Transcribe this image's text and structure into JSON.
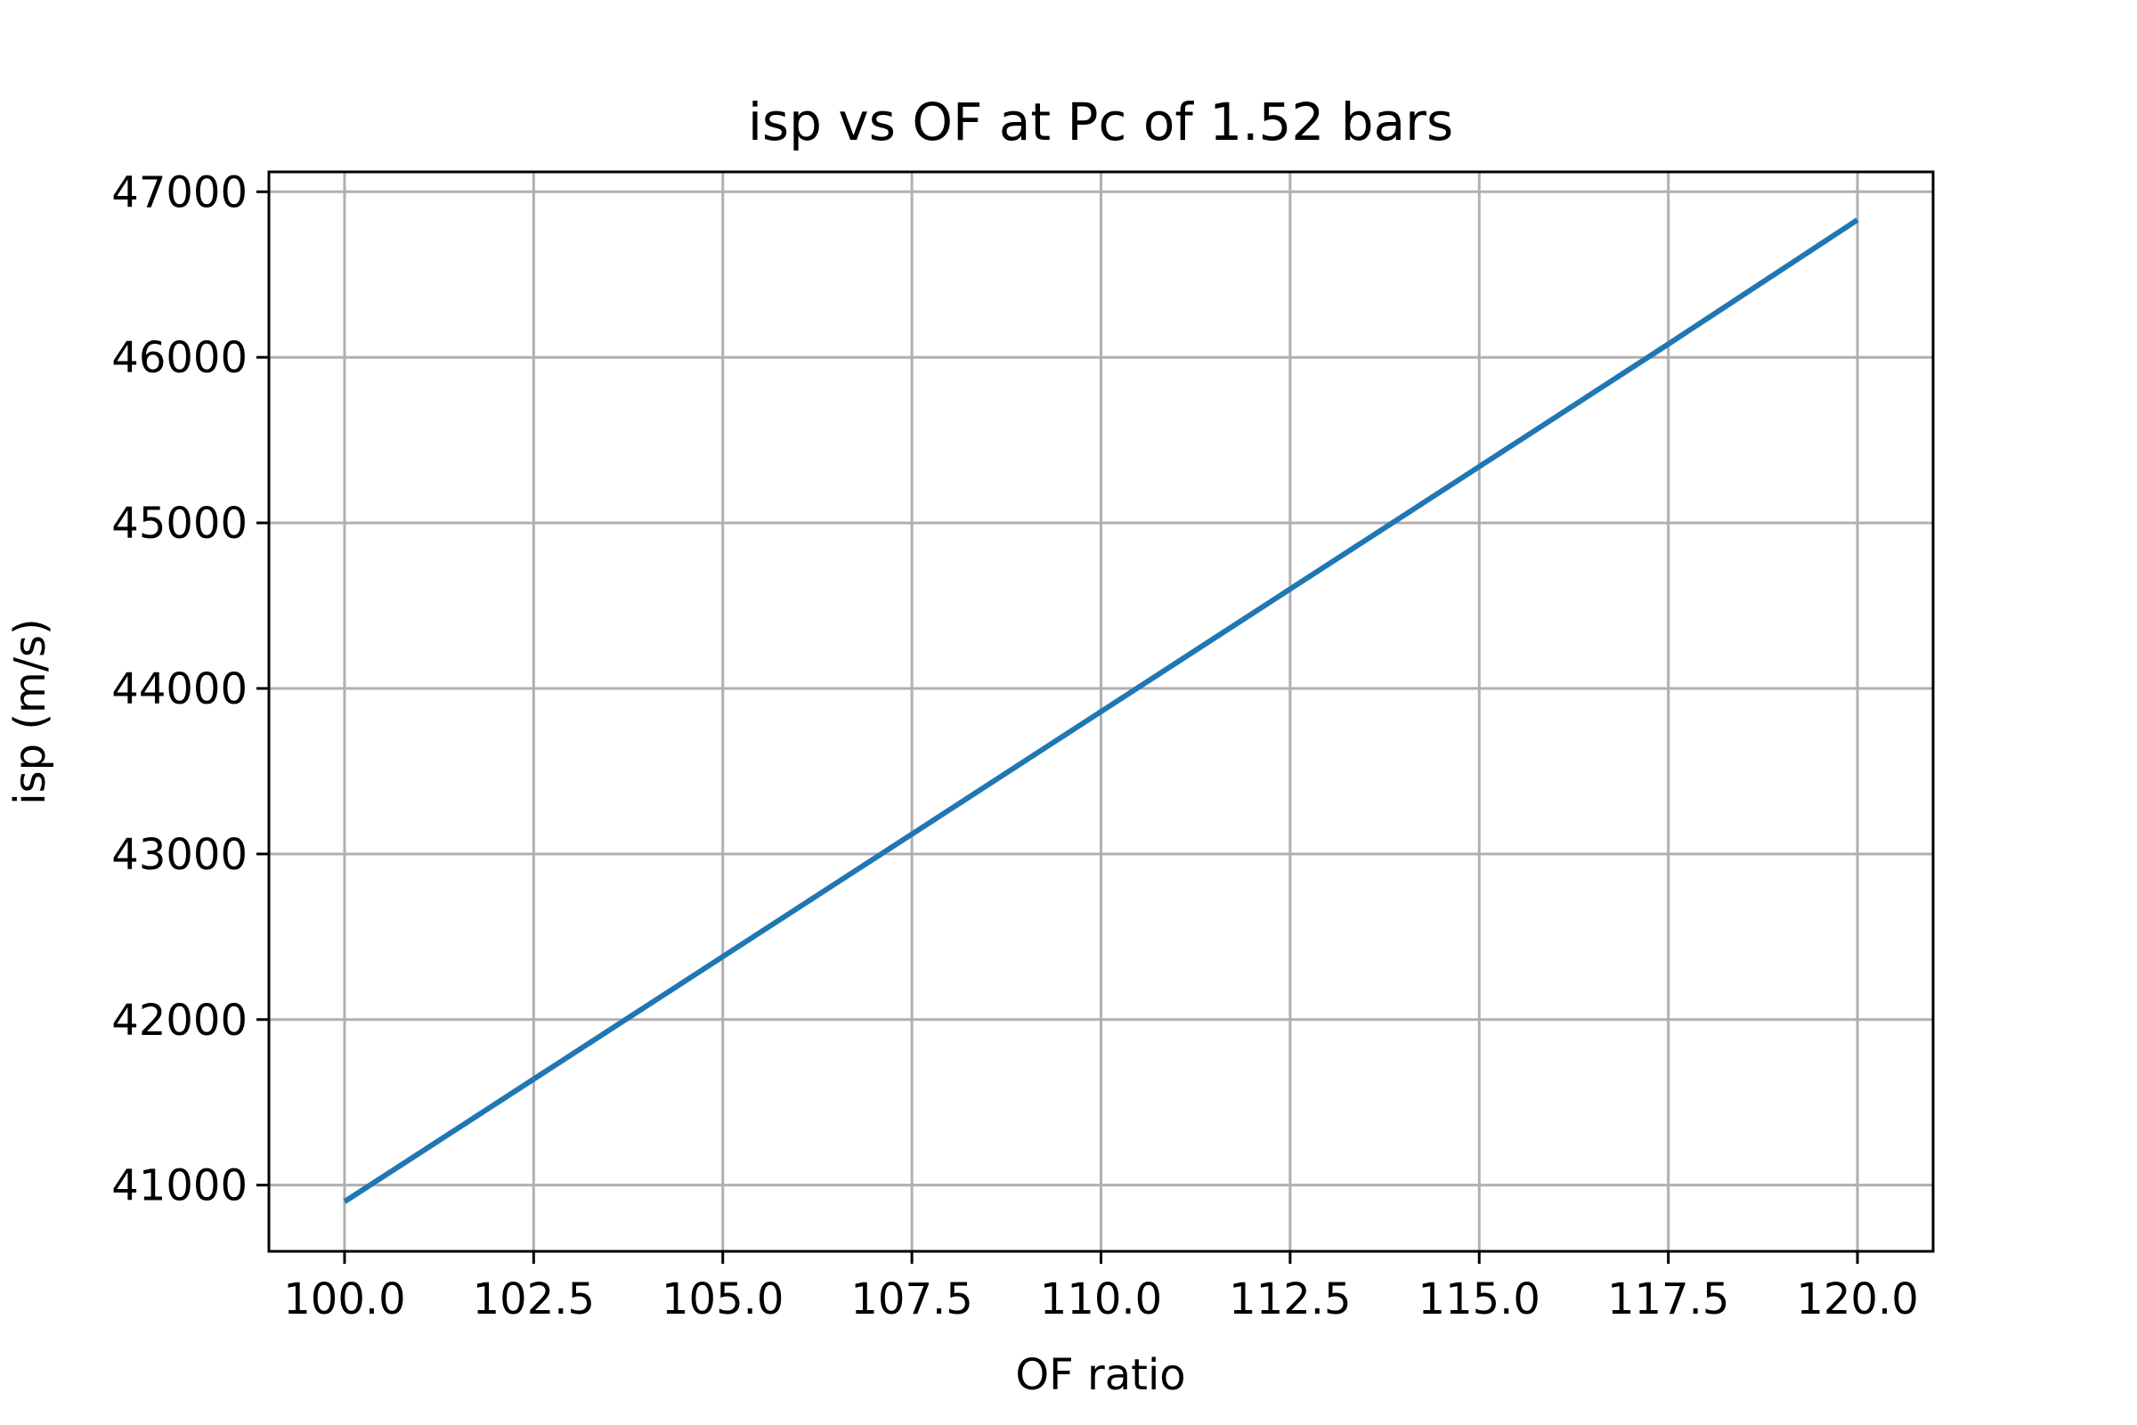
{
  "chart_data": {
    "type": "line",
    "title": "isp vs OF at Pc of 1.52 bars",
    "xlabel": "OF ratio",
    "ylabel": "isp (m/s)",
    "xlim": [
      99.0,
      121.0
    ],
    "ylim": [
      40600,
      47120
    ],
    "grid": true,
    "x_ticks": [
      100.0,
      102.5,
      105.0,
      107.5,
      110.0,
      112.5,
      115.0,
      117.5,
      120.0
    ],
    "x_tick_labels": [
      "100.0",
      "102.5",
      "105.0",
      "107.5",
      "110.0",
      "112.5",
      "115.0",
      "117.5",
      "120.0"
    ],
    "y_ticks": [
      41000,
      42000,
      43000,
      44000,
      45000,
      46000,
      47000
    ],
    "y_tick_labels": [
      "41000",
      "42000",
      "43000",
      "44000",
      "45000",
      "46000",
      "47000"
    ],
    "series": [
      {
        "name": "isp",
        "color": "#1f77b4",
        "x": [
          100.0,
          102.5,
          105.0,
          107.5,
          110.0,
          112.5,
          115.0,
          117.5,
          120.0
        ],
        "y": [
          40900,
          41640,
          42380,
          43120,
          43860,
          44600,
          45340,
          46080,
          46830
        ]
      }
    ]
  }
}
